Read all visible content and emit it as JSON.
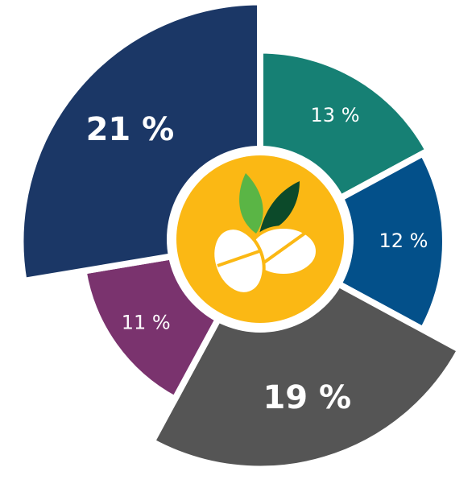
{
  "chart_data": {
    "type": "polar-donut",
    "categories": [
      null,
      null,
      null,
      null,
      null
    ],
    "values": [
      13,
      12,
      19,
      11,
      21
    ],
    "value_labels": [
      "13 %",
      "12 %",
      "19 %",
      "11 %",
      "21 %"
    ],
    "colors": [
      "#168074",
      "#03508a",
      "#555555",
      "#7a336e",
      "#1b3766"
    ]
  }
}
